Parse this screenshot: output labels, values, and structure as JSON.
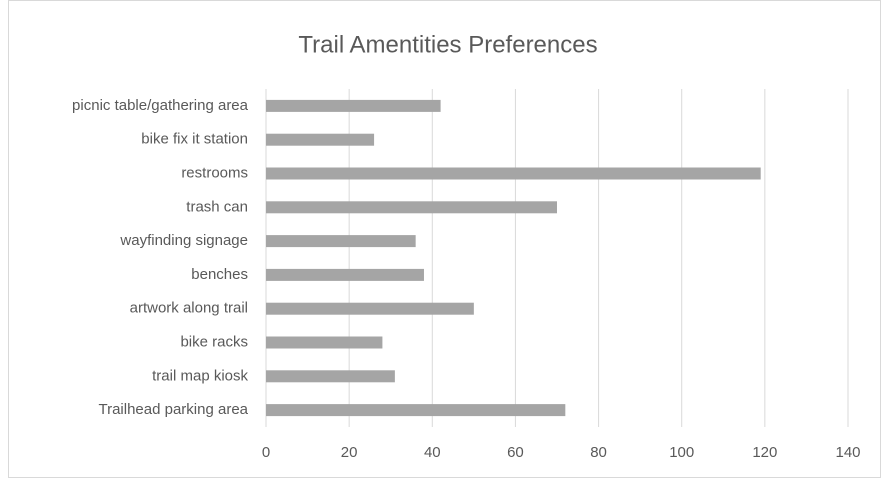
{
  "chart_data": {
    "type": "bar",
    "orientation": "horizontal",
    "title": "Trail Amentities Preferences",
    "categories": [
      "picnic table/gathering area",
      "bike fix it station",
      "restrooms",
      "trash can",
      "wayfinding signage",
      "benches",
      "artwork along trail",
      "bike racks",
      "trail map kiosk",
      "Trailhead parking area"
    ],
    "values": [
      42,
      26,
      119,
      70,
      36,
      38,
      50,
      28,
      31,
      72
    ],
    "color": "#a5a5a5",
    "xlim": [
      0,
      140
    ],
    "xticks": [
      0,
      20,
      40,
      60,
      80,
      100,
      120,
      140
    ],
    "grid": true
  }
}
